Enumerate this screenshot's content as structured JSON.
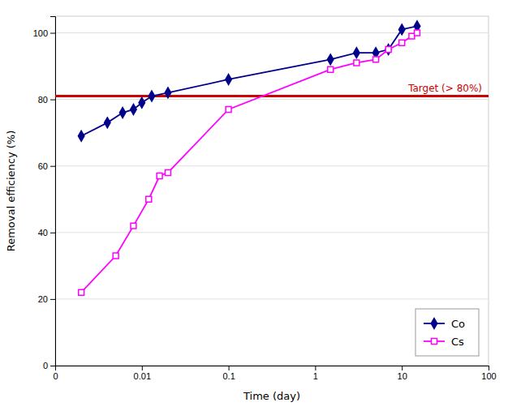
{
  "chart_data": {
    "type": "line",
    "log": "x",
    "x_label": "Time (day)",
    "y_label": "Removal efficiency (%)",
    "xlim": [
      0.001,
      100
    ],
    "ylim": [
      0,
      105
    ],
    "xticks": [
      {
        "value": 0.001,
        "label": "0"
      },
      0.01,
      0.1,
      1,
      10,
      100
    ],
    "yticks": [
      0,
      20,
      40,
      60,
      80,
      100
    ],
    "grid": true,
    "legend": "lower right",
    "series": [
      {
        "name": "Co",
        "color": "#00008B",
        "marker": "diamond",
        "x": [
          0.002,
          0.004,
          0.006,
          0.008,
          0.01,
          0.013,
          0.02,
          0.1,
          1.5,
          3,
          5,
          7,
          10,
          15
        ],
        "values": [
          69,
          73,
          76,
          77,
          79,
          81,
          82,
          86,
          92,
          94,
          94,
          95,
          101,
          102
        ]
      },
      {
        "name": "Cs",
        "color": "#FF00FF",
        "marker": "square-open",
        "x": [
          0.002,
          0.005,
          0.008,
          0.012,
          0.016,
          0.02,
          0.1,
          1.5,
          3,
          5,
          7,
          10,
          13,
          15
        ],
        "values": [
          22,
          33,
          42,
          50,
          57,
          58,
          77,
          89,
          91,
          92,
          95,
          97,
          99,
          100
        ]
      }
    ],
    "annotations": [
      {
        "text": "Target (> 80%)",
        "y": 81,
        "color": "#CC0000"
      }
    ]
  }
}
